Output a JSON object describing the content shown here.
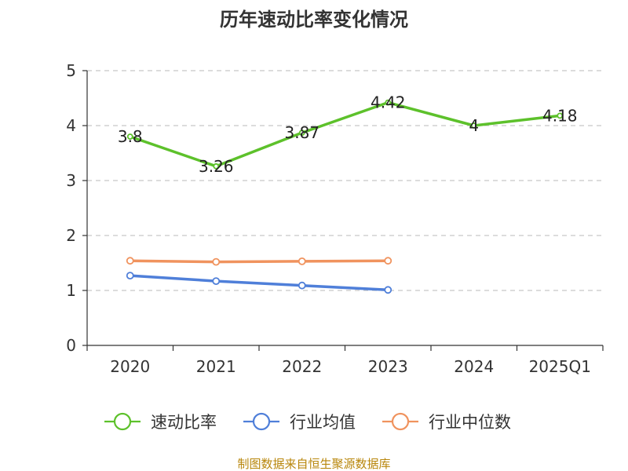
{
  "chart_data": {
    "type": "line",
    "title": "历年速动比率变化情况",
    "categories": [
      "2020",
      "2021",
      "2022",
      "2023",
      "2024",
      "2025Q1"
    ],
    "ylim": [
      0,
      5
    ],
    "yticks": [
      0,
      1,
      2,
      3,
      4,
      5
    ],
    "grid": true,
    "series": [
      {
        "name": "速动比率",
        "color": "#5dc12b",
        "values": [
          3.8,
          3.26,
          3.87,
          4.42,
          4,
          4.18
        ],
        "labels": [
          "3.8",
          "3.26",
          "3.87",
          "4.42",
          "4",
          "4.18"
        ]
      },
      {
        "name": "行业均值",
        "color": "#4f7fd9",
        "values": [
          1.27,
          1.17,
          1.09,
          1.01,
          null,
          null
        ]
      },
      {
        "name": "行业中位数",
        "color": "#f0935e",
        "values": [
          1.54,
          1.52,
          1.53,
          1.54,
          null,
          null
        ]
      }
    ],
    "legend_position": "bottom",
    "source": "制图数据来自恒生聚源数据库"
  }
}
